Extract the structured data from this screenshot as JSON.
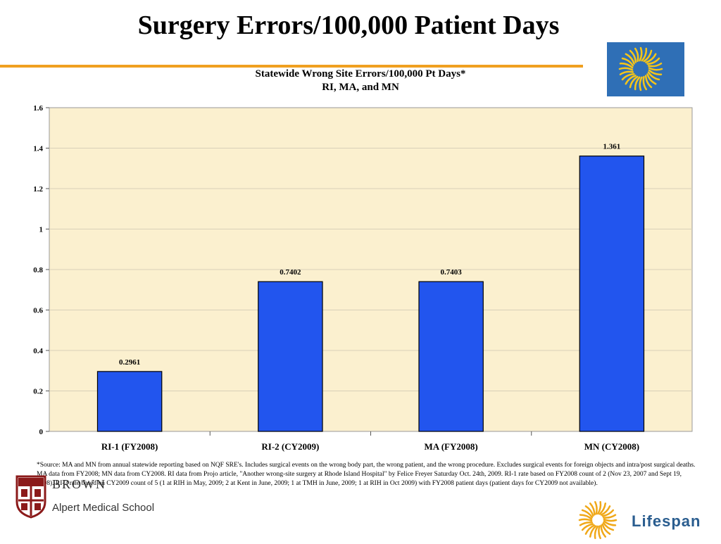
{
  "slide": {
    "title": "Surgery Errors/100,000 Patient Days",
    "footnote": "*Source:  MA and MN from annual statewide reporting based on NQF SRE's.  Includes surgical events on the wrong body part, the wrong patient, and the wrong procedure.  Excludes surgical events for foreign objects and intra/post surgical deaths.  MA data from FY2008; MN data from CY2008.  RI data from Projo article, \"Another wrong-site surgery at Rhode Island Hospital\" by Felice Freyer Saturday Oct. 24th, 2009. RI-1 rate based on FY2008 count of 2 (Nov 23, 2007 and Sept 19, 2008).  RI-2 rate based on CY2009 count of 5 (1 at RIH in May, 2009; 2 at Kent in June, 2009; 1 at TMH in June, 2009; 1 at RIH in Oct 2009) with FY2008 patient days (patient days for CY2009 not available)."
  },
  "logos": {
    "brown_word": "BROWN",
    "brown_school": "Alpert Medical School",
    "lifespan_word": "Lifespan"
  },
  "colors": {
    "bar": "#2255ee",
    "plot_background": "#fbf0cf",
    "accent_rule": "#f0a020",
    "logo_sun": "#f5c518"
  },
  "chart_data": {
    "type": "bar",
    "title": "Statewide Wrong Site Errors/100,000 Pt Days*",
    "subtitle": "RI, MA, and MN",
    "categories": [
      "RI-1 (FY2008)",
      "RI-2 (CY2009)",
      "MA (FY2008)",
      "MN (CY2008)"
    ],
    "values": [
      0.2961,
      0.7402,
      0.7403,
      1.361
    ],
    "value_labels": [
      "0.2961",
      "0.7402",
      "0.7403",
      "1.361"
    ],
    "ylim": [
      0,
      1.6
    ],
    "yticks": [
      0,
      0.2,
      0.4,
      0.6,
      0.8,
      1,
      1.2,
      1.4,
      1.6
    ],
    "ytick_labels": [
      "0",
      "0.2",
      "0.4",
      "0.6",
      "0.8",
      "1",
      "1.2",
      "1.4",
      "1.6"
    ],
    "grid": true,
    "legend": "none",
    "xlabel": "",
    "ylabel": ""
  }
}
